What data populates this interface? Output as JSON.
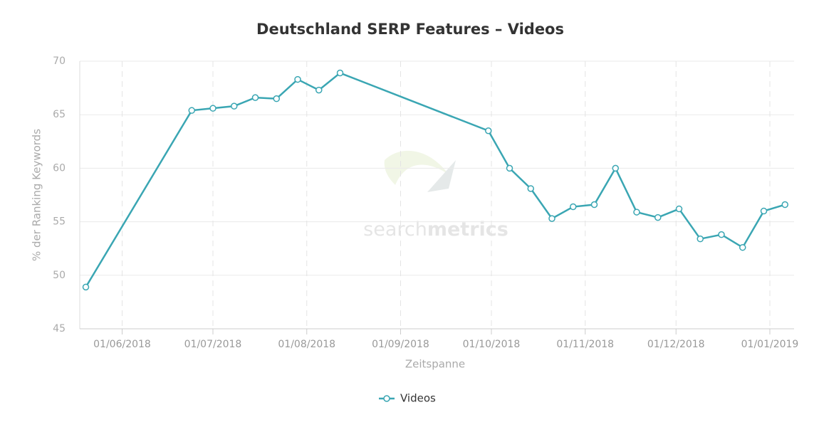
{
  "chart_data": {
    "type": "line",
    "title": "Deutschland SERP Features – Videos",
    "x_label": "Zeitspanne",
    "y_label": "% der Ranking Keywords",
    "watermark": [
      "search",
      "metrics"
    ],
    "x": [
      "2018-05-20",
      "2018-06-24",
      "2018-07-01",
      "2018-07-08",
      "2018-07-15",
      "2018-07-22",
      "2018-07-29",
      "2018-08-05",
      "2018-08-12",
      "2018-09-30",
      "2018-10-07",
      "2018-10-14",
      "2018-10-21",
      "2018-10-28",
      "2018-11-04",
      "2018-11-11",
      "2018-11-18",
      "2018-11-25",
      "2018-12-02",
      "2018-12-09",
      "2018-12-16",
      "2018-12-23",
      "2018-12-30",
      "2019-01-06"
    ],
    "series": [
      {
        "name": "Videos",
        "color": "#3aa6b3",
        "values": [
          48.9,
          65.4,
          65.6,
          65.8,
          66.6,
          66.5,
          68.3,
          67.3,
          68.9,
          63.5,
          60.0,
          58.1,
          55.3,
          56.4,
          56.6,
          60.0,
          55.9,
          55.4,
          56.2,
          53.4,
          53.8,
          52.6,
          56.0,
          56.6
        ]
      }
    ],
    "xlim": [
      "2018-05-18",
      "2019-01-09"
    ],
    "xticks": [
      {
        "value": "2018-06-01",
        "label": "01/06/2018"
      },
      {
        "value": "2018-07-01",
        "label": "01/07/2018"
      },
      {
        "value": "2018-08-01",
        "label": "01/08/2018"
      },
      {
        "value": "2018-09-01",
        "label": "01/09/2018"
      },
      {
        "value": "2018-10-01",
        "label": "01/10/2018"
      },
      {
        "value": "2018-11-01",
        "label": "01/11/2018"
      },
      {
        "value": "2018-12-01",
        "label": "01/12/2018"
      },
      {
        "value": "2019-01-01",
        "label": "01/01/2019"
      }
    ],
    "ylim": [
      45,
      70
    ],
    "yticks": [
      45,
      50,
      55,
      60,
      65,
      70
    ],
    "grid": true
  }
}
